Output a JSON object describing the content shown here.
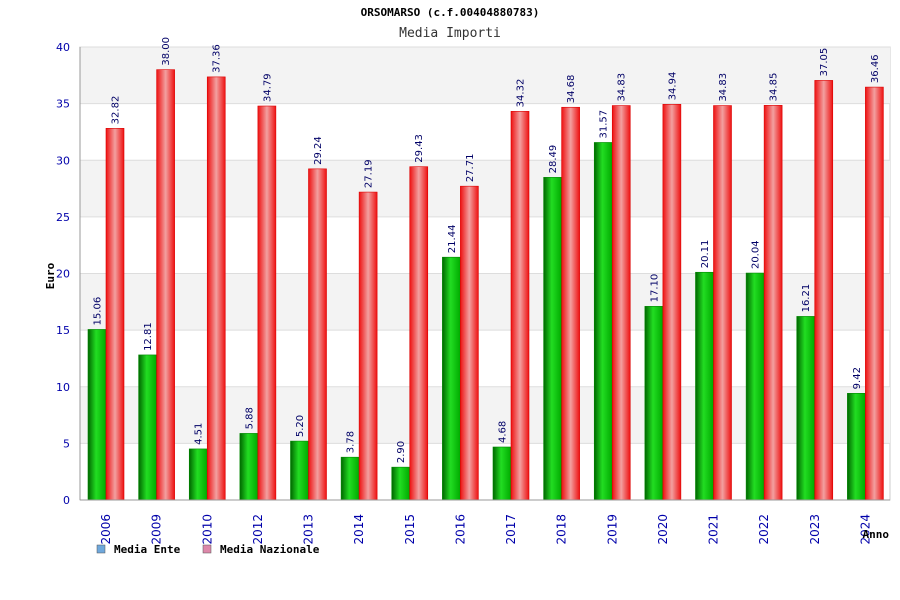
{
  "chart_data": {
    "type": "bar",
    "title": "ORSOMARSO (c.f.00404880783)",
    "subtitle": "Media Importi",
    "xlabel": "Anno",
    "ylabel": "Euro",
    "ylim": [
      0,
      40
    ],
    "yticks": [
      0,
      5,
      10,
      15,
      20,
      25,
      30,
      35,
      40
    ],
    "grid": true,
    "legend_position": "bottom-left",
    "categories": [
      "2006",
      "2009",
      "2010",
      "2012",
      "2013",
      "2014",
      "2015",
      "2016",
      "2017",
      "2018",
      "2019",
      "2020",
      "2021",
      "2022",
      "2023",
      "2024"
    ],
    "series": [
      {
        "name": "Media Ente",
        "legend_color": "#6fa8dc",
        "bar_color": "#00bb00",
        "values": [
          15.06,
          12.81,
          4.51,
          5.88,
          5.2,
          3.78,
          2.9,
          21.44,
          4.68,
          28.49,
          31.57,
          17.1,
          20.11,
          20.04,
          16.21,
          9.42
        ],
        "labels": [
          "15.06",
          "12.81",
          "4.51",
          "5.88",
          "5.20",
          "3.78",
          "2.90",
          "21.44",
          "4.68",
          "28.49",
          "31.57",
          "17.10",
          "20.11",
          "20.04",
          "16.21",
          "9.42"
        ]
      },
      {
        "name": "Media Nazionale",
        "legend_color": "#dd88aa",
        "bar_color": "#ee1111",
        "values": [
          32.82,
          38.0,
          37.36,
          34.79,
          29.24,
          27.19,
          29.43,
          27.71,
          34.32,
          34.68,
          34.83,
          34.94,
          34.83,
          34.85,
          37.05,
          36.46
        ],
        "labels": [
          "32.82",
          "38.00",
          "37.36",
          "34.79",
          "29.24",
          "27.19",
          "29.43",
          "27.71",
          "34.32",
          "34.68",
          "34.83",
          "34.94",
          "34.83",
          "34.85",
          "37.05",
          "36.46"
        ]
      }
    ]
  }
}
